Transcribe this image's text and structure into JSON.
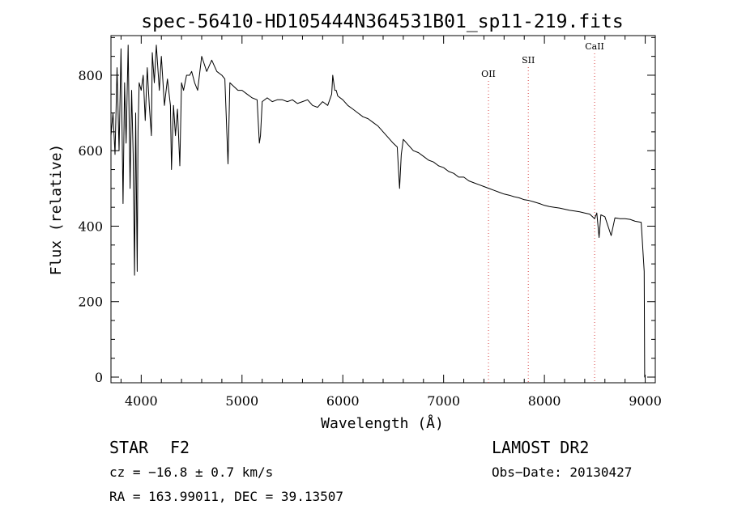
{
  "chart_data": {
    "type": "line",
    "title": "spec-56410-HD105444N364531B01_sp11-219.fits",
    "xlabel": "Wavelength (Å)",
    "ylabel": "Flux (relative)",
    "xlim": [
      3700,
      9100
    ],
    "ylim": [
      -15,
      905
    ],
    "x_ticks": [
      4000,
      5000,
      6000,
      7000,
      8000,
      9000
    ],
    "x_tick_labels": [
      "4000",
      "5000",
      "6000",
      "7000",
      "8000",
      "9000"
    ],
    "y_ticks": [
      0,
      200,
      400,
      600,
      800
    ],
    "y_tick_labels": [
      "0",
      "200",
      "400",
      "600",
      "800"
    ],
    "grid": false,
    "line_color": "#000000",
    "marker_color": "#d94040",
    "series": [
      {
        "x": [
          3700,
          3720,
          3740,
          3760,
          3780,
          3800,
          3820,
          3835,
          3850,
          3870,
          3890,
          3905,
          3920,
          3934,
          3945,
          3960,
          3968,
          3980,
          4000,
          4020,
          4040,
          4060,
          4080,
          4101,
          4110,
          4130,
          4150,
          4180,
          4200,
          4230,
          4260,
          4290,
          4300,
          4320,
          4340,
          4360,
          4383,
          4400,
          4420,
          4450,
          4480,
          4500,
          4530,
          4560,
          4600,
          4650,
          4700,
          4750,
          4800,
          4830,
          4861,
          4880,
          4920,
          4960,
          5000,
          5050,
          5100,
          5150,
          5172,
          5183,
          5200,
          5250,
          5300,
          5350,
          5400,
          5450,
          5500,
          5550,
          5600,
          5650,
          5700,
          5750,
          5800,
          5850,
          5890,
          5900,
          5920,
          5935,
          5950,
          6000,
          6050,
          6100,
          6150,
          6200,
          6250,
          6300,
          6350,
          6400,
          6450,
          6500,
          6540,
          6563,
          6580,
          6600,
          6650,
          6700,
          6750,
          6800,
          6850,
          6900,
          6950,
          7000,
          7050,
          7100,
          7150,
          7200,
          7250,
          7300,
          7350,
          7400,
          7450,
          7500,
          7550,
          7600,
          7650,
          7700,
          7750,
          7800,
          7850,
          7900,
          7950,
          8000,
          8050,
          8100,
          8150,
          8200,
          8250,
          8300,
          8350,
          8400,
          8450,
          8498,
          8520,
          8542,
          8560,
          8600,
          8662,
          8700,
          8750,
          8800,
          8850,
          8900,
          8960,
          8990,
          8995,
          9000
        ],
        "values": [
          640,
          700,
          590,
          820,
          600,
          870,
          460,
          780,
          620,
          880,
          500,
          760,
          590,
          270,
          700,
          280,
          650,
          780,
          760,
          800,
          680,
          820,
          720,
          640,
          860,
          780,
          880,
          760,
          850,
          720,
          790,
          720,
          550,
          720,
          640,
          710,
          560,
          780,
          760,
          800,
          800,
          810,
          780,
          760,
          850,
          810,
          840,
          810,
          800,
          790,
          565,
          780,
          770,
          760,
          760,
          750,
          740,
          735,
          620,
          640,
          730,
          740,
          730,
          735,
          735,
          730,
          735,
          725,
          730,
          735,
          720,
          715,
          730,
          720,
          750,
          800,
          760,
          760,
          745,
          735,
          720,
          710,
          700,
          690,
          685,
          675,
          665,
          650,
          635,
          620,
          610,
          500,
          590,
          630,
          615,
          600,
          595,
          585,
          575,
          570,
          560,
          555,
          545,
          540,
          530,
          530,
          520,
          515,
          510,
          505,
          500,
          495,
          490,
          485,
          482,
          478,
          475,
          470,
          468,
          464,
          460,
          455,
          452,
          450,
          448,
          445,
          442,
          440,
          438,
          435,
          432,
          420,
          435,
          370,
          430,
          425,
          375,
          422,
          420,
          420,
          418,
          413,
          410,
          280,
          0,
          0
        ]
      }
    ],
    "annotations": [
      {
        "label": "OII",
        "x": 7445
      },
      {
        "label": "SII",
        "x": 7840
      },
      {
        "label": "CaII",
        "x": 8498
      }
    ]
  },
  "footer": {
    "object_type": "STAR",
    "subclass": "F2",
    "survey": "LAMOST DR2",
    "cz": "cz = −16.8 ± 0.7 km/s",
    "obs_date": "Obs−Date: 20130427",
    "coords": "RA = 163.99011, DEC =  39.13507"
  }
}
